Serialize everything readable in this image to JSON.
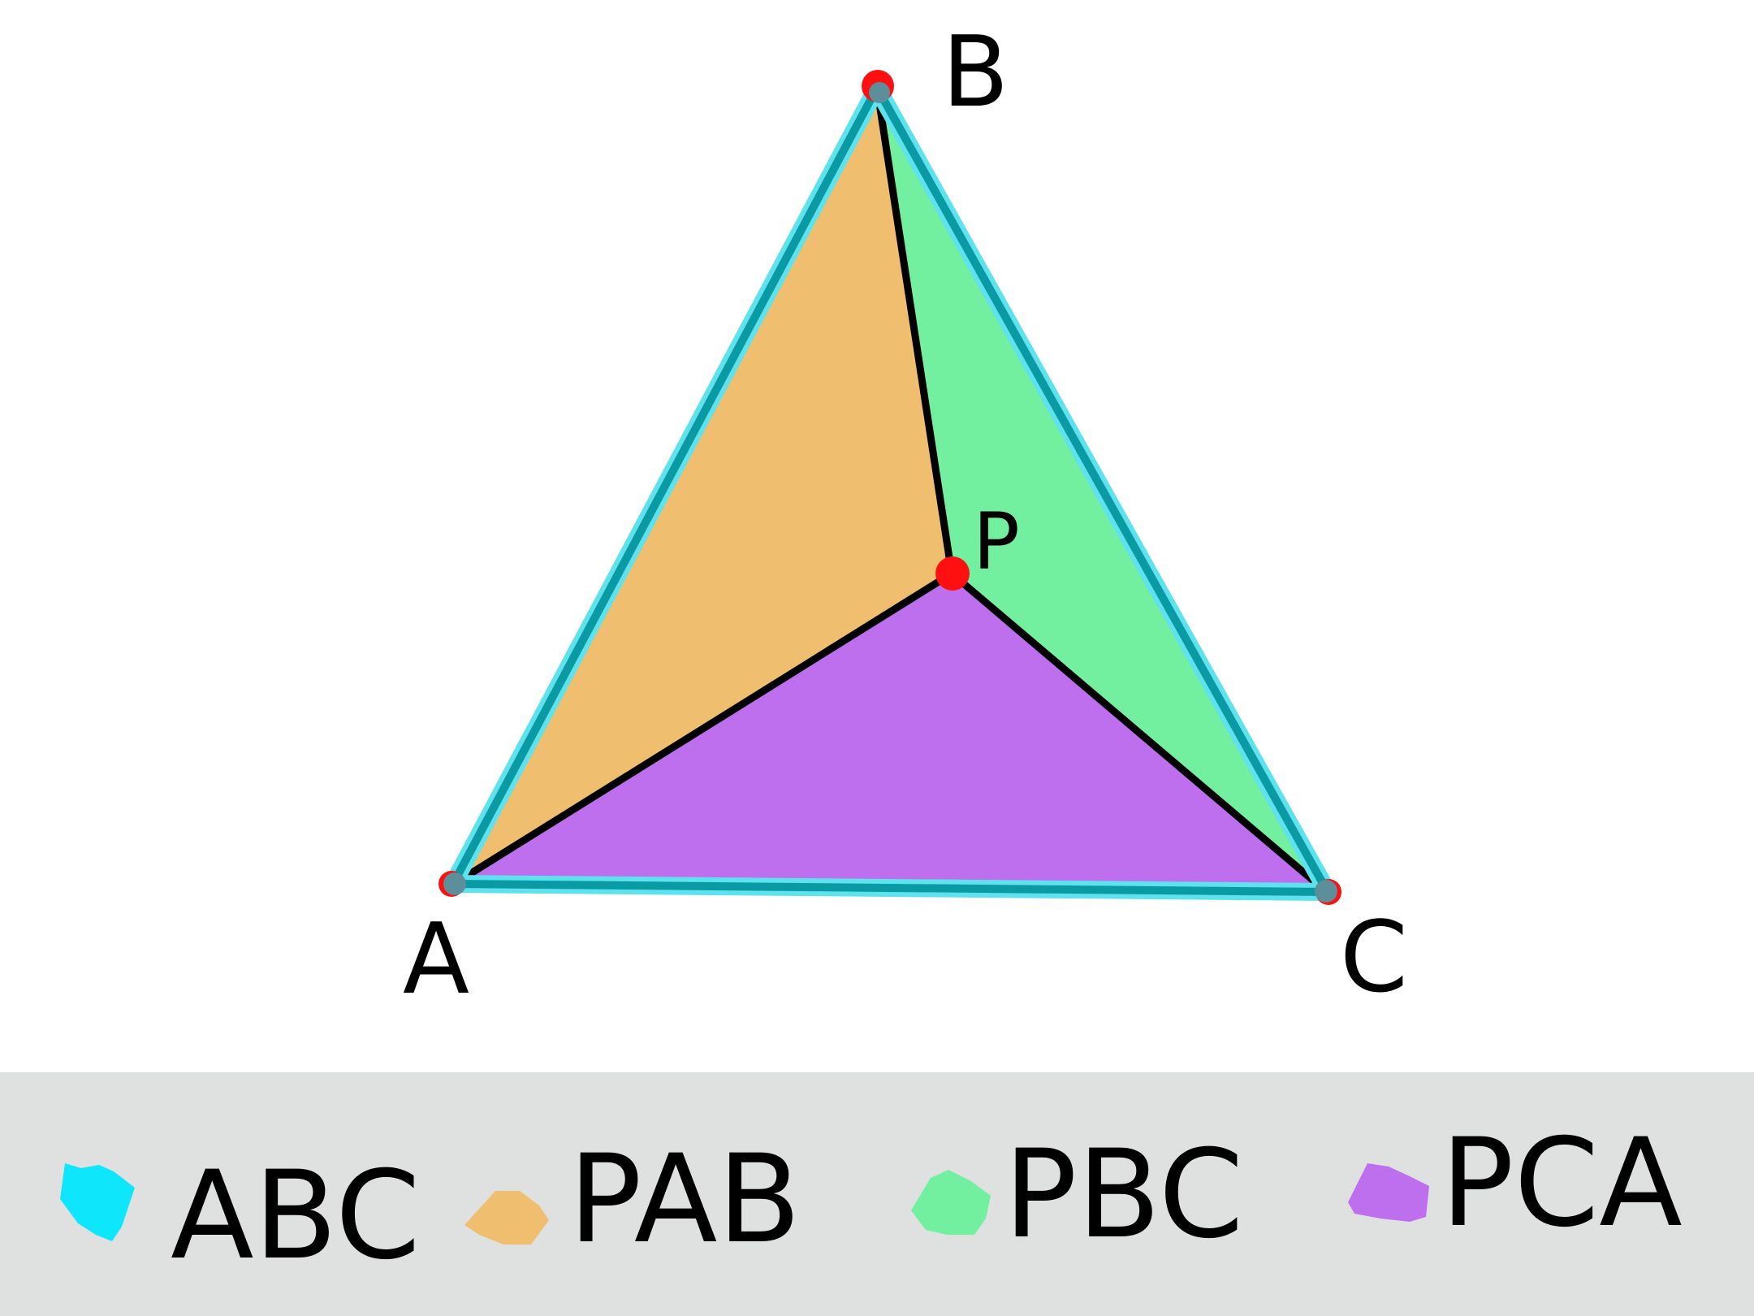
{
  "diagram": {
    "vertices": {
      "A": {
        "label": "A"
      },
      "B": {
        "label": "B"
      },
      "C": {
        "label": "C"
      },
      "P": {
        "label": "P"
      }
    },
    "regions": {
      "PAB": {
        "color": "#efbf6f"
      },
      "PBC": {
        "color": "#72f09f"
      },
      "PCA": {
        "color": "#bd6fee"
      }
    },
    "outline_color": "#0a9aa3",
    "outline_glow": "#5de2ee",
    "point_color": "#ff1010",
    "corner_dot_color": "#5c8f99",
    "line_color": "#000000"
  },
  "legend": {
    "background": "#dfe0e0",
    "items": [
      {
        "label": "ABC",
        "color": "#0ee7fb"
      },
      {
        "label": "PAB",
        "color": "#efbf6f"
      },
      {
        "label": "PBC",
        "color": "#72f09f"
      },
      {
        "label": "PCA",
        "color": "#bd6fee"
      }
    ]
  }
}
